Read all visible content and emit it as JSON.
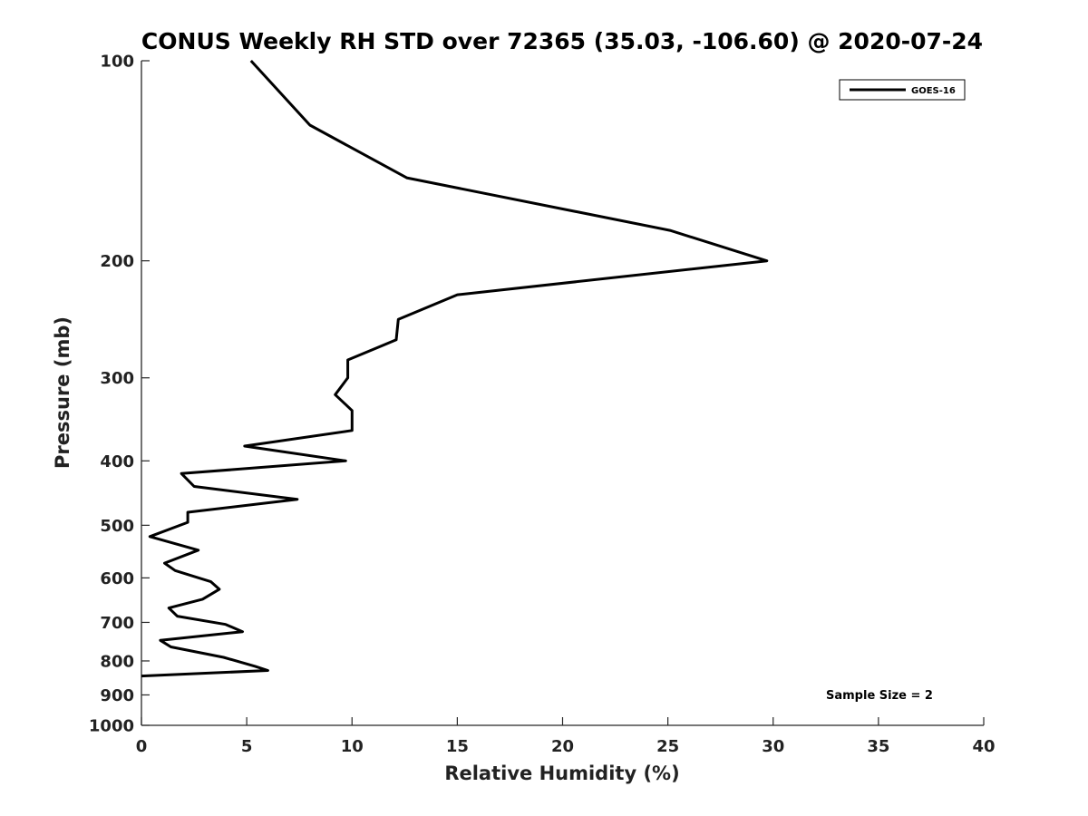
{
  "chart_data": {
    "type": "line",
    "title": "CONUS Weekly RH STD over 72365 (35.03, -106.60) @ 2020-07-24",
    "xlabel": "Relative Humidity (%)",
    "ylabel": "Pressure (mb)",
    "xlim": [
      0,
      40
    ],
    "ylim": [
      100,
      1000
    ],
    "y_scale": "log",
    "y_reversed": true,
    "x_ticks": [
      0,
      5,
      10,
      15,
      20,
      25,
      30,
      35,
      40
    ],
    "y_ticks": [
      100,
      200,
      300,
      400,
      500,
      600,
      700,
      800,
      900,
      1000
    ],
    "grid": false,
    "legend": {
      "placement": "top-right",
      "entries": [
        "GOES-16"
      ]
    },
    "annotations": [
      {
        "text": "Sample Size = 2",
        "placement": "bottom-right"
      }
    ],
    "series": [
      {
        "name": "GOES-16",
        "color": "#000000",
        "points": [
          [
            5.2,
            100
          ],
          [
            8.0,
            125
          ],
          [
            12.6,
            150
          ],
          [
            25.1,
            180
          ],
          [
            29.7,
            200
          ],
          [
            15.0,
            225
          ],
          [
            12.2,
            245
          ],
          [
            12.1,
            263
          ],
          [
            9.8,
            282
          ],
          [
            9.8,
            300
          ],
          [
            9.2,
            318
          ],
          [
            10.0,
            336
          ],
          [
            10.0,
            360
          ],
          [
            4.9,
            380
          ],
          [
            9.7,
            400
          ],
          [
            1.9,
            418
          ],
          [
            2.5,
            437
          ],
          [
            7.4,
            457
          ],
          [
            2.2,
            478
          ],
          [
            2.2,
            495
          ],
          [
            0.4,
            520
          ],
          [
            2.7,
            545
          ],
          [
            1.1,
            570
          ],
          [
            1.6,
            585
          ],
          [
            3.3,
            608
          ],
          [
            3.7,
            624
          ],
          [
            2.9,
            646
          ],
          [
            1.3,
            666
          ],
          [
            1.7,
            685
          ],
          [
            4.0,
            705
          ],
          [
            4.8,
            723
          ],
          [
            0.9,
            745
          ],
          [
            1.4,
            762
          ],
          [
            3.9,
            790
          ],
          [
            5.4,
            815
          ],
          [
            6.0,
            827
          ],
          [
            0.0,
            843
          ]
        ]
      }
    ]
  }
}
